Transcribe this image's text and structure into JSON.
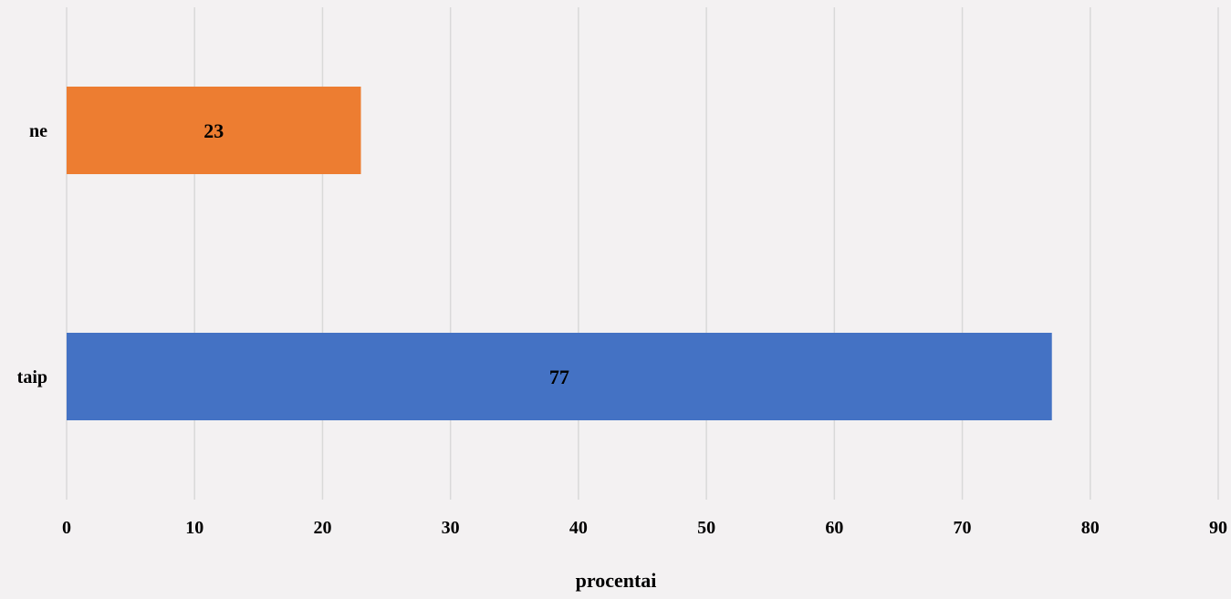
{
  "chart_data": {
    "type": "bar",
    "orientation": "horizontal",
    "categories": [
      "taip",
      "ne"
    ],
    "values": [
      77,
      23
    ],
    "colors": [
      "#4472c4",
      "#ed7d31"
    ],
    "xlabel": "procentai",
    "ylabel": "",
    "xlim": [
      0,
      90
    ],
    "x_ticks": [
      0,
      10,
      20,
      30,
      40,
      50,
      60,
      70,
      80,
      90
    ],
    "grid": "vertical",
    "data_labels": true,
    "background": "#f3f1f2",
    "gridline_color": "#d9d9d9"
  }
}
